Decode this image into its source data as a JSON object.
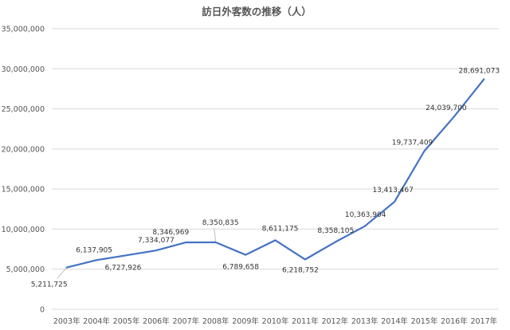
{
  "chart_data": {
    "type": "line",
    "title": "訪日外客数の推移（人）",
    "xlabel": "",
    "ylabel": "",
    "categories": [
      "2003年",
      "2004年",
      "2005年",
      "2006年",
      "2007年",
      "2008年",
      "2009年",
      "2010年",
      "2011年",
      "2012年",
      "2013年",
      "2014年",
      "2015年",
      "2016年",
      "2017年"
    ],
    "series": [
      {
        "values": [
          5211725,
          6137905,
          6727926,
          7334077,
          8346969,
          8350835,
          6789658,
          8611175,
          6218752,
          8358105,
          10363904,
          13413467,
          19737409,
          24039700,
          28691073
        ]
      }
    ],
    "data_labels": [
      "5,211,725",
      "6,137,905",
      "6,727,926",
      "7,334,077",
      "8,346,969",
      "8,350,835",
      "6,789,658",
      "8,611,175",
      "6,218,752",
      "8,358,105",
      "10,363,904",
      "13,413,467",
      "19,737,409",
      "24,039,700",
      "28,691,073"
    ],
    "y_ticks": [
      0,
      5000000,
      10000000,
      15000000,
      20000000,
      25000000,
      30000000,
      35000000
    ],
    "y_tick_labels": [
      "0",
      "5,000,000",
      "10,000,000",
      "15,000,000",
      "20,000,000",
      "25,000,000",
      "30,000,000",
      "35,000,000"
    ],
    "ylim": [
      0,
      35000000
    ],
    "grid": true,
    "legend": "none",
    "colors": {
      "line": "#4472c4",
      "grid": "#d9d9d9",
      "text": "#555555",
      "label": "#333333"
    }
  }
}
